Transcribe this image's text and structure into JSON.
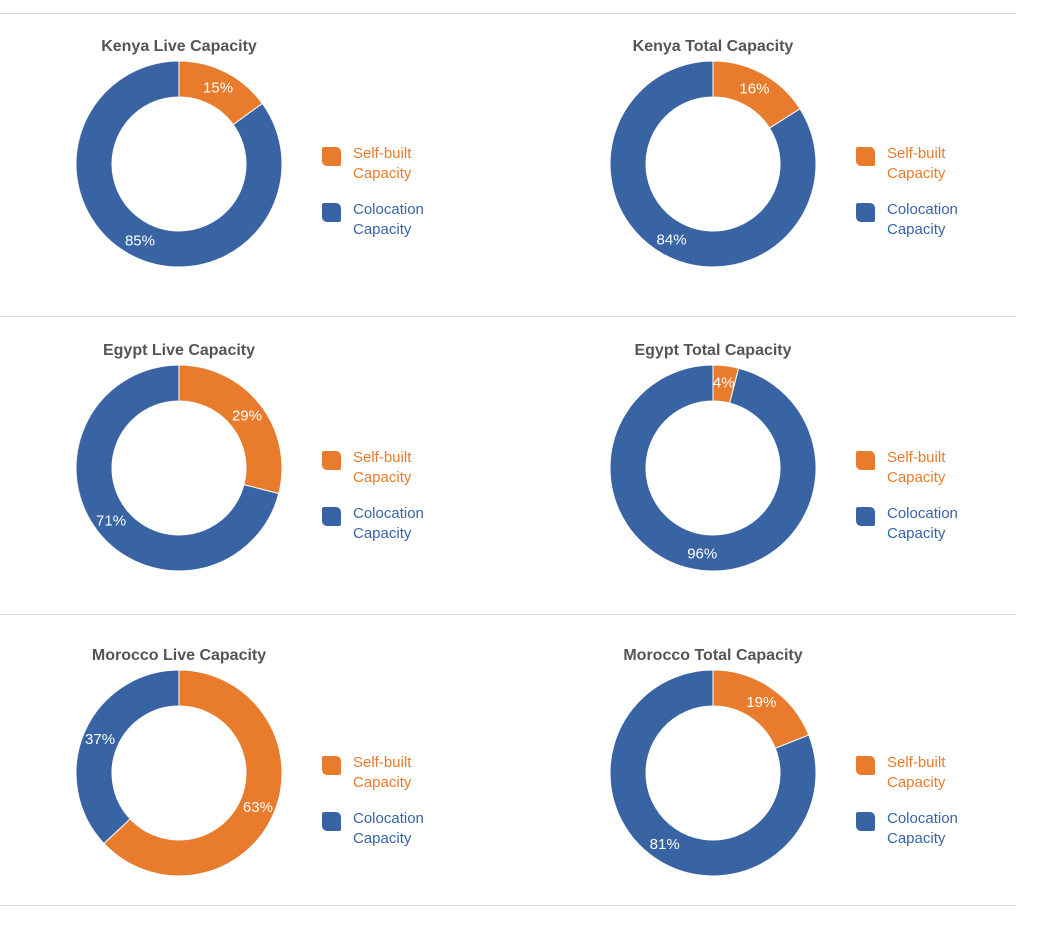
{
  "colors": {
    "self_built": "#E87B2C",
    "colocation": "#3964A4"
  },
  "legend": {
    "self_built": "Self-built Capacity",
    "colocation": "Colocation Capacity"
  },
  "chart_data": [
    {
      "type": "pie",
      "title": "Kenya Live Capacity",
      "categories": [
        "Self-built Capacity",
        "Colocation Capacity"
      ],
      "values": [
        15,
        85
      ],
      "labels": [
        "15%",
        "85%"
      ]
    },
    {
      "type": "pie",
      "title": "Kenya Total Capacity",
      "categories": [
        "Self-built Capacity",
        "Colocation Capacity"
      ],
      "values": [
        16,
        84
      ],
      "labels": [
        "16%",
        "84%"
      ]
    },
    {
      "type": "pie",
      "title": "Egypt Live Capacity",
      "categories": [
        "Self-built Capacity",
        "Colocation Capacity"
      ],
      "values": [
        29,
        71
      ],
      "labels": [
        "29%",
        "71%"
      ]
    },
    {
      "type": "pie",
      "title": "Egypt Total Capacity",
      "categories": [
        "Self-built Capacity",
        "Colocation Capacity"
      ],
      "values": [
        4,
        96
      ],
      "labels": [
        "4%",
        "96%"
      ]
    },
    {
      "type": "pie",
      "title": "Morocco Live Capacity",
      "categories": [
        "Self-built Capacity",
        "Colocation Capacity"
      ],
      "values": [
        63,
        37
      ],
      "labels": [
        "63%",
        "37%"
      ]
    },
    {
      "type": "pie",
      "title": "Morocco Total Capacity",
      "categories": [
        "Self-built Capacity",
        "Colocation Capacity"
      ],
      "values": [
        19,
        81
      ],
      "labels": [
        "19%",
        "81%"
      ]
    }
  ]
}
